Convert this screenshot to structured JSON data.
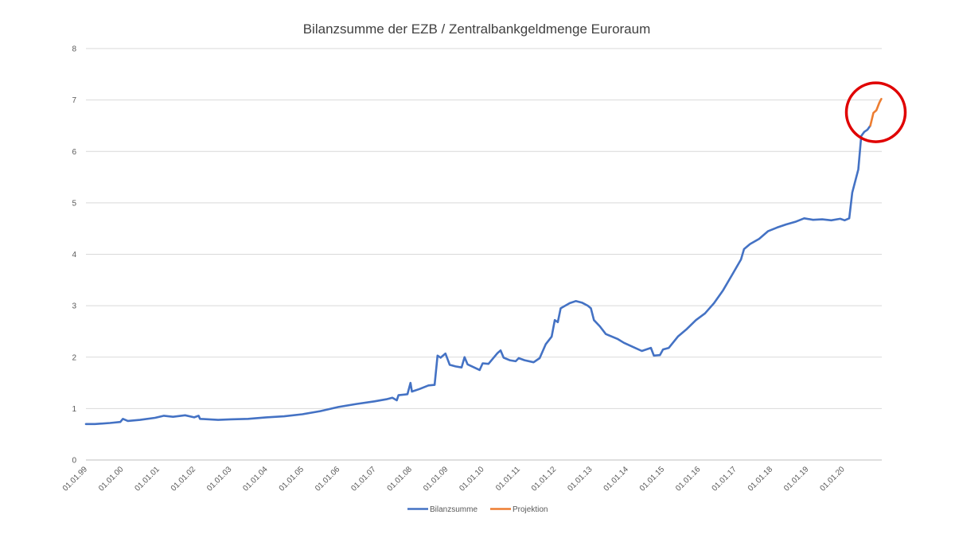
{
  "chart_data": {
    "type": "line",
    "title": "Bilanzsumme der EZB / Zentralbankgeldmenge Euroraum",
    "xlabel": "",
    "ylabel": "",
    "ylim": [
      0,
      8
    ],
    "yticks": [
      0,
      1,
      2,
      3,
      4,
      5,
      6,
      7,
      8
    ],
    "grid": true,
    "legend_position": "bottom",
    "x_tick_labels": [
      "01.01.99",
      "01.01.00",
      "01.01.01",
      "01.01.02",
      "01.01.03",
      "01.01.04",
      "01.01.05",
      "01.01.06",
      "01.01.07",
      "01.01.08",
      "01.01.09",
      "01.01.10",
      "01.01.11",
      "01.01.12",
      "01.01.13",
      "01.01.14",
      "01.01.15",
      "01.01.16",
      "01.01.17",
      "01.01.18",
      "01.01.19",
      "01.01.20"
    ],
    "series": [
      {
        "name": "Bilanzsumme",
        "color": "#4472C4",
        "points": [
          [
            "1999-01-01",
            0.7
          ],
          [
            "1999-04-01",
            0.7
          ],
          [
            "1999-09-01",
            0.72
          ],
          [
            "1999-12-15",
            0.74
          ],
          [
            "2000-01-10",
            0.8
          ],
          [
            "2000-03-01",
            0.76
          ],
          [
            "2000-07-01",
            0.78
          ],
          [
            "2000-12-01",
            0.82
          ],
          [
            "2001-03-01",
            0.86
          ],
          [
            "2001-06-01",
            0.84
          ],
          [
            "2001-10-01",
            0.87
          ],
          [
            "2002-01-01",
            0.83
          ],
          [
            "2002-02-15",
            0.86
          ],
          [
            "2002-03-01",
            0.8
          ],
          [
            "2002-09-01",
            0.78
          ],
          [
            "2003-01-01",
            0.79
          ],
          [
            "2003-07-01",
            0.8
          ],
          [
            "2004-01-01",
            0.83
          ],
          [
            "2004-07-01",
            0.85
          ],
          [
            "2005-01-01",
            0.89
          ],
          [
            "2005-07-01",
            0.95
          ],
          [
            "2006-01-01",
            1.03
          ],
          [
            "2006-07-01",
            1.09
          ],
          [
            "2007-01-01",
            1.14
          ],
          [
            "2007-05-01",
            1.18
          ],
          [
            "2007-07-01",
            1.21
          ],
          [
            "2007-08-15",
            1.16
          ],
          [
            "2007-09-01",
            1.26
          ],
          [
            "2007-12-01",
            1.28
          ],
          [
            "2008-01-01",
            1.5
          ],
          [
            "2008-01-15",
            1.33
          ],
          [
            "2008-04-01",
            1.38
          ],
          [
            "2008-07-01",
            1.45
          ],
          [
            "2008-09-01",
            1.46
          ],
          [
            "2008-10-01",
            2.03
          ],
          [
            "2008-11-01",
            1.99
          ],
          [
            "2008-12-20",
            2.07
          ],
          [
            "2009-02-01",
            1.85
          ],
          [
            "2009-04-01",
            1.82
          ],
          [
            "2009-06-01",
            1.8
          ],
          [
            "2009-07-01",
            2.0
          ],
          [
            "2009-08-01",
            1.86
          ],
          [
            "2009-12-01",
            1.75
          ],
          [
            "2010-01-01",
            1.88
          ],
          [
            "2010-03-01",
            1.87
          ],
          [
            "2010-06-01",
            2.08
          ],
          [
            "2010-07-01",
            2.13
          ],
          [
            "2010-08-01",
            1.99
          ],
          [
            "2010-10-01",
            1.94
          ],
          [
            "2010-12-01",
            1.92
          ],
          [
            "2011-01-01",
            1.98
          ],
          [
            "2011-03-01",
            1.94
          ],
          [
            "2011-06-01",
            1.9
          ],
          [
            "2011-08-01",
            1.98
          ],
          [
            "2011-10-01",
            2.25
          ],
          [
            "2011-12-01",
            2.4
          ],
          [
            "2012-01-01",
            2.72
          ],
          [
            "2012-02-01",
            2.68
          ],
          [
            "2012-03-01",
            2.95
          ],
          [
            "2012-06-01",
            3.05
          ],
          [
            "2012-08-01",
            3.09
          ],
          [
            "2012-10-01",
            3.06
          ],
          [
            "2012-12-01",
            3.0
          ],
          [
            "2013-01-01",
            2.95
          ],
          [
            "2013-02-01",
            2.72
          ],
          [
            "2013-04-01",
            2.6
          ],
          [
            "2013-06-01",
            2.45
          ],
          [
            "2013-10-01",
            2.35
          ],
          [
            "2013-12-01",
            2.28
          ],
          [
            "2014-03-01",
            2.2
          ],
          [
            "2014-06-01",
            2.12
          ],
          [
            "2014-09-01",
            2.18
          ],
          [
            "2014-10-01",
            2.03
          ],
          [
            "2014-12-01",
            2.04
          ],
          [
            "2015-01-01",
            2.15
          ],
          [
            "2015-03-01",
            2.18
          ],
          [
            "2015-06-01",
            2.4
          ],
          [
            "2015-09-01",
            2.55
          ],
          [
            "2015-12-01",
            2.72
          ],
          [
            "2016-03-01",
            2.85
          ],
          [
            "2016-06-01",
            3.05
          ],
          [
            "2016-09-01",
            3.3
          ],
          [
            "2016-12-01",
            3.6
          ],
          [
            "2017-03-01",
            3.9
          ],
          [
            "2017-04-01",
            4.1
          ],
          [
            "2017-06-01",
            4.2
          ],
          [
            "2017-09-01",
            4.3
          ],
          [
            "2017-12-01",
            4.45
          ],
          [
            "2018-03-01",
            4.52
          ],
          [
            "2018-06-01",
            4.58
          ],
          [
            "2018-09-01",
            4.63
          ],
          [
            "2018-12-01",
            4.7
          ],
          [
            "2019-03-01",
            4.67
          ],
          [
            "2019-06-01",
            4.68
          ],
          [
            "2019-09-01",
            4.66
          ],
          [
            "2019-12-01",
            4.69
          ],
          [
            "2020-01-15",
            4.66
          ],
          [
            "2020-03-01",
            4.7
          ],
          [
            "2020-04-01",
            5.2
          ],
          [
            "2020-06-01",
            5.65
          ],
          [
            "2020-07-01",
            6.3
          ],
          [
            "2020-08-01",
            6.38
          ],
          [
            "2020-09-01",
            6.42
          ],
          [
            "2020-10-01",
            6.5
          ]
        ]
      },
      {
        "name": "Projektion",
        "color": "#ED7D31",
        "points": [
          [
            "2020-10-01",
            6.5
          ],
          [
            "2020-11-01",
            6.75
          ],
          [
            "2020-12-01",
            6.8
          ],
          [
            "2021-01-01",
            6.95
          ],
          [
            "2021-01-20",
            7.02
          ]
        ]
      }
    ],
    "annotation": {
      "shape": "circle",
      "color": "#E00000"
    }
  }
}
